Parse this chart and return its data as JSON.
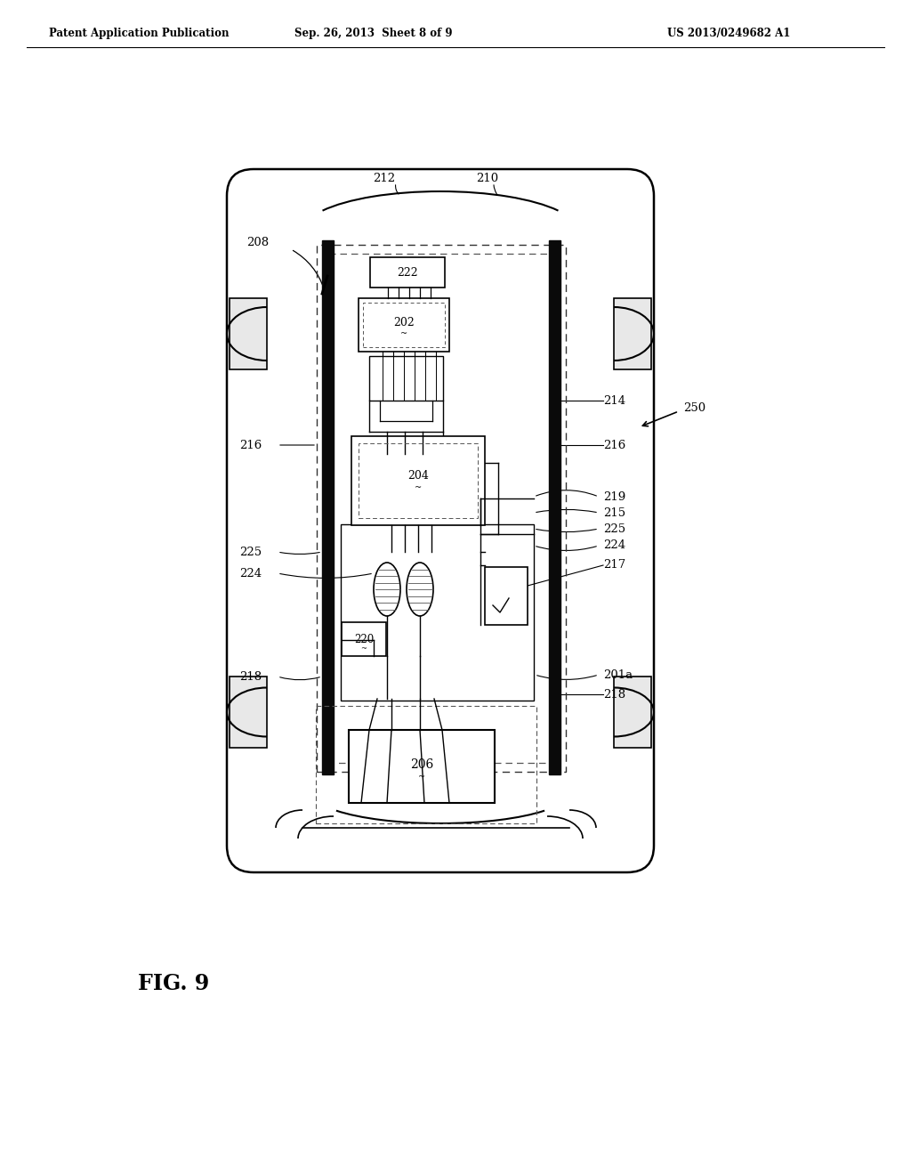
{
  "title_left": "Patent Application Publication",
  "title_center": "Sep. 26, 2013  Sheet 8 of 9",
  "title_right": "US 2013/0249682 A1",
  "fig_label": "FIG. 9",
  "bg_color": "#ffffff",
  "line_color": "#000000"
}
